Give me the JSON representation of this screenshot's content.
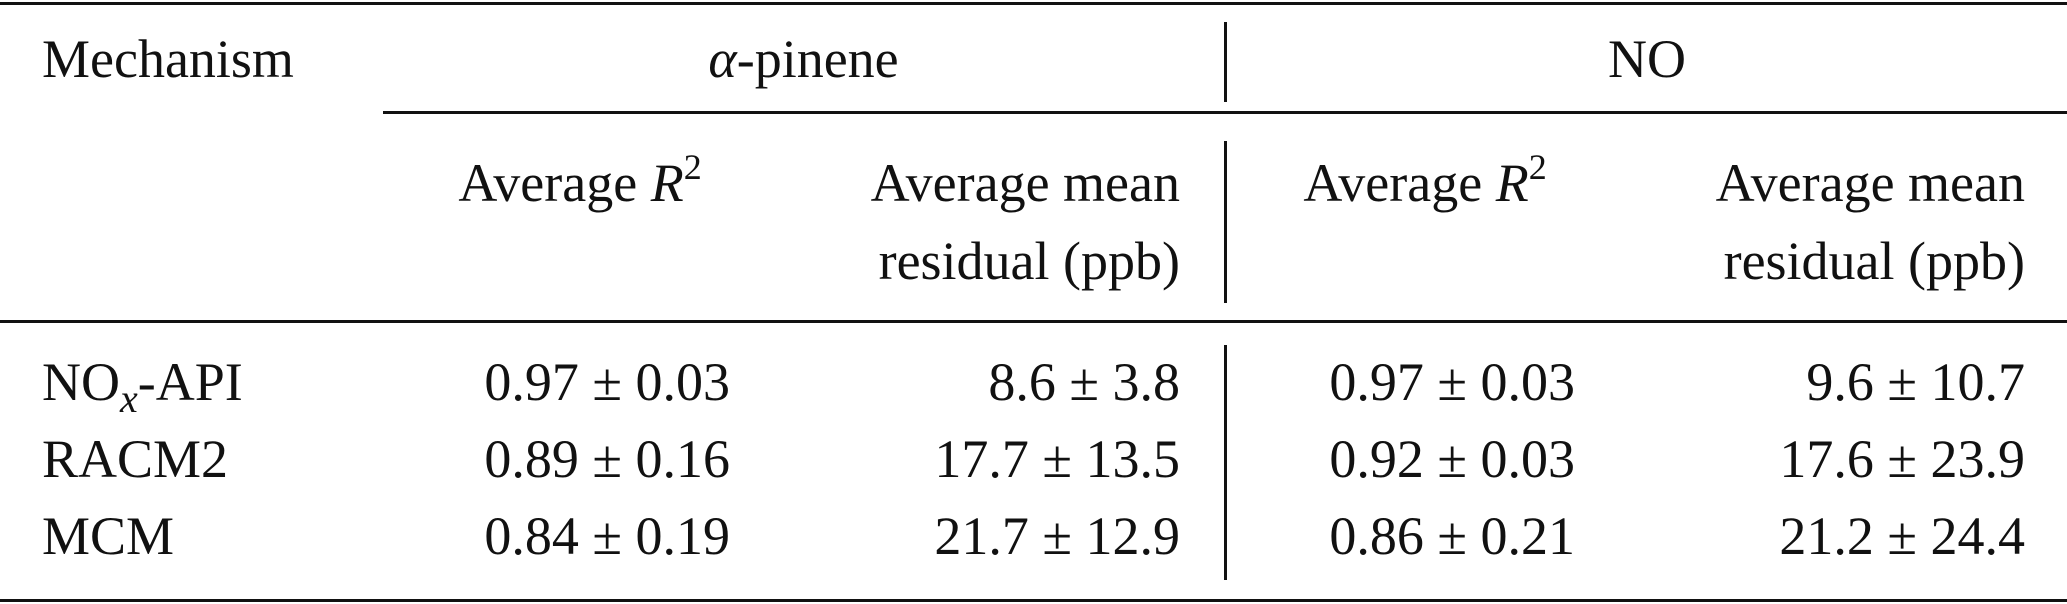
{
  "table": {
    "header": {
      "mechanism": "Mechanism",
      "group_alpha_symbol": "α",
      "group_alpha_rest": "-pinene",
      "group_no": "NO",
      "avg_r2_prefix": "Average ",
      "avg_r2_var": "R",
      "avg_r2_exp": "2",
      "avg_res_line1": "Average mean",
      "avg_res_line2": "residual (ppb)"
    },
    "rows": [
      {
        "label_main": "NO",
        "label_sub": "x",
        "label_rest": "-API",
        "alpha_r2": "0.97 ± 0.03",
        "alpha_res": "8.6 ± 3.8",
        "no_r2": "0.97 ± 0.03",
        "no_res": "9.6 ± 10.7"
      },
      {
        "label_main": "RACM2",
        "label_sub": "",
        "label_rest": "",
        "alpha_r2": "0.89 ± 0.16",
        "alpha_res": "17.7 ± 13.5",
        "no_r2": "0.92 ± 0.03",
        "no_res": "17.6 ± 23.9"
      },
      {
        "label_main": "MCM",
        "label_sub": "",
        "label_rest": "",
        "alpha_r2": "0.84 ± 0.19",
        "alpha_res": "21.7 ± 12.9",
        "no_r2": "0.86 ± 0.21",
        "no_res": "21.2 ± 24.4"
      }
    ]
  }
}
